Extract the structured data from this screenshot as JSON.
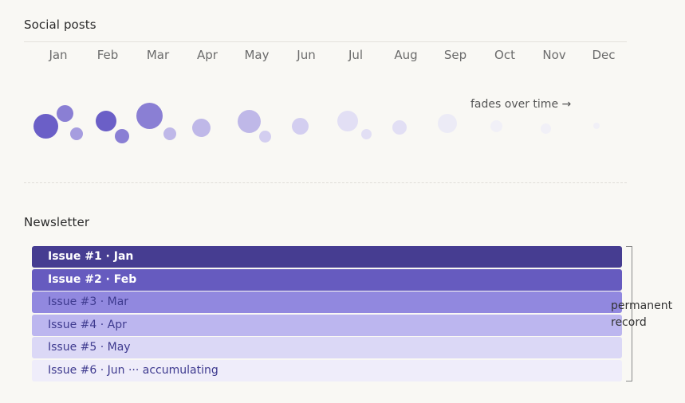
{
  "social": {
    "title": "Social posts",
    "months": [
      "Jan",
      "Feb",
      "Mar",
      "Apr",
      "May",
      "Jun",
      "Jul",
      "Aug",
      "Sep",
      "Oct",
      "Nov",
      "Dec"
    ],
    "fade_note": "fades over time →",
    "bubble_colors": [
      "#6b5fc7",
      "#8a7fd4",
      "#a69ddf",
      "#bfb8e8",
      "#d3cef0",
      "#e2dff4",
      "#ecebf6",
      "#f1f0f7"
    ]
  },
  "newsletter": {
    "title": "Newsletter",
    "issues": [
      {
        "label": "Issue #1 · Jan",
        "color": "#463d91"
      },
      {
        "label": "Issue #2 · Feb",
        "color": "#665bbf"
      },
      {
        "label": "Issue #3 · Mar",
        "color": "#9188df"
      },
      {
        "label": "Issue #4 · Apr",
        "color": "#bcb6ef"
      },
      {
        "label": "Issue #5 · May",
        "color": "#dbd8f6"
      },
      {
        "label": "Issue #6 · Jun ··· accumulating",
        "color": "#efedfa"
      }
    ],
    "bracket_label_line1": "permanent",
    "bracket_label_line2": "record"
  }
}
